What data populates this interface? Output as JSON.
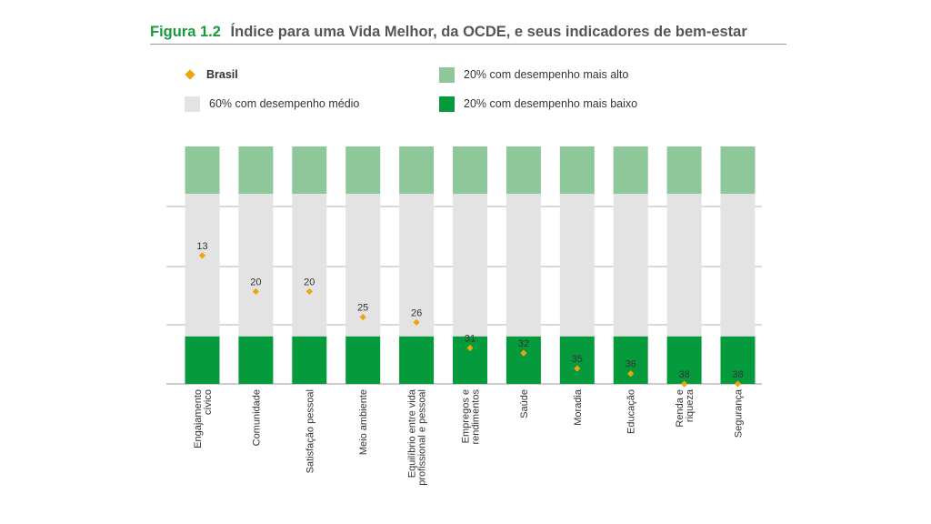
{
  "figure": {
    "number": "Figura 1.2",
    "title": "Índice para uma Vida Melhor, da OCDE, e seus indicadores de bem-estar"
  },
  "legend": {
    "brasil": {
      "label": "Brasil",
      "color": "#f0a30a"
    },
    "top20": {
      "label": "20% com desempenho mais alto",
      "color": "#8ec89a"
    },
    "mid60": {
      "label": "60% com desempenho médio",
      "color": "#e3e3e3"
    },
    "bottom20": {
      "label": "20% com desempenho mais baixo",
      "color": "#059a3c"
    }
  },
  "chart_data": {
    "type": "bar",
    "orientation": "vertical",
    "stacked": true,
    "categories": [
      "Engajamento\ncívico",
      "Comunidade",
      "Satisfação pessoal",
      "Meio ambiente",
      "Equilíbrio entre vida\nprofissional e pessoal",
      "Empregos e\nrendimentos",
      "Saúde",
      "Moradia",
      "Educação",
      "Renda e\nriqueza",
      "Segurança"
    ],
    "band_fractions": {
      "top20": 0.2,
      "mid60": 0.6,
      "bottom20": 0.2
    },
    "series": [
      {
        "name": "Brasil",
        "type": "scatter",
        "values": [
          13,
          20,
          20,
          25,
          26,
          31,
          32,
          35,
          36,
          38,
          38
        ]
      }
    ],
    "rank_range": [
      1,
      38
    ],
    "grid": true,
    "legend_position": "top-left"
  }
}
